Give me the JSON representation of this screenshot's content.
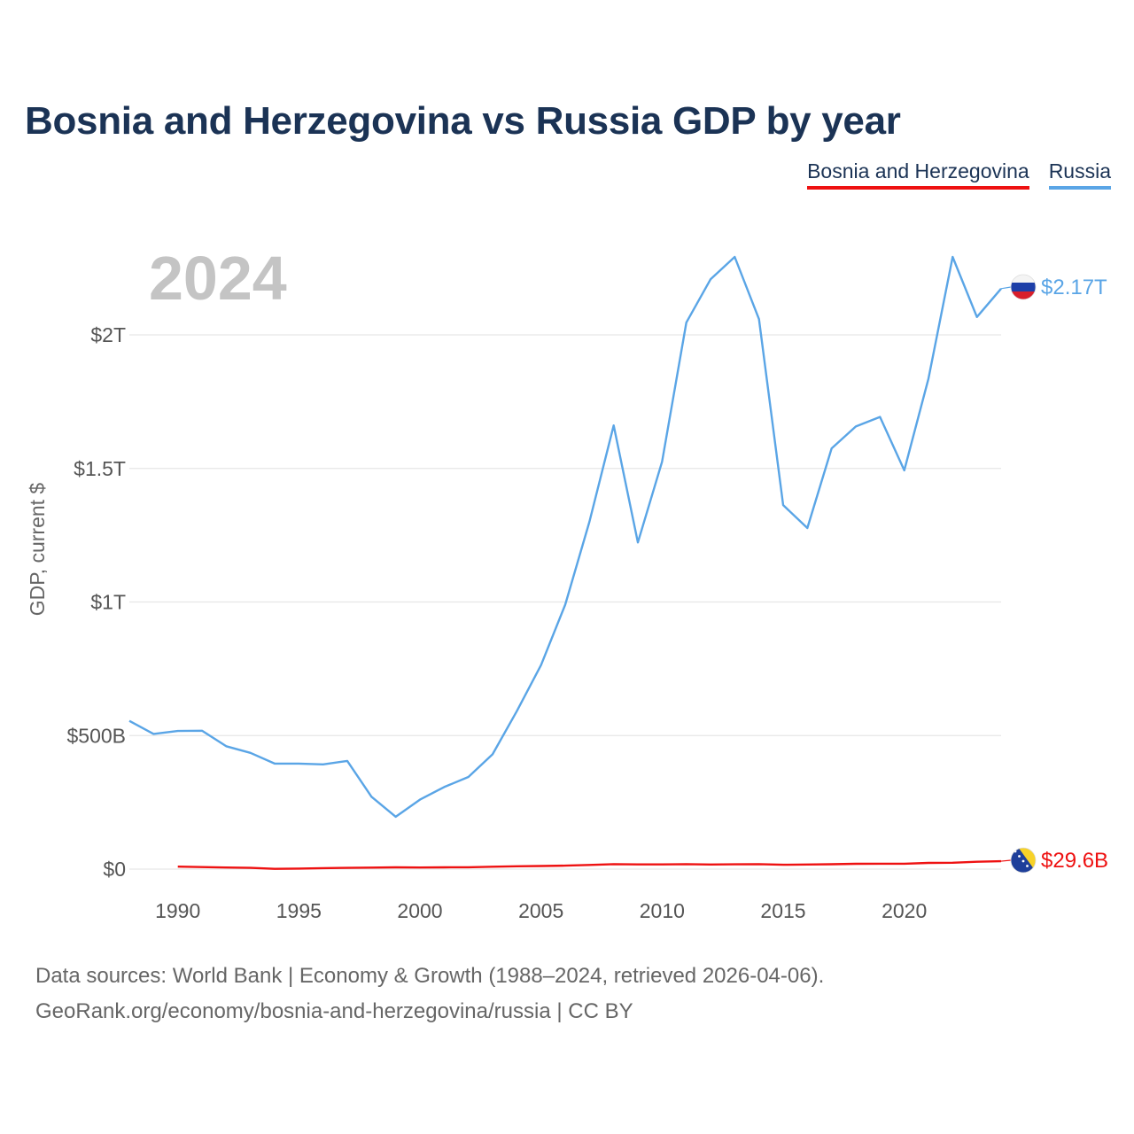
{
  "page": {
    "title": "Bosnia and Herzegovina vs Russia GDP by year",
    "year_overlay": "2024",
    "footer_line1": "Data sources: World Bank | Economy & Growth (1988–2024, retrieved 2026-04-06).",
    "footer_line2": "GeoRank.org/economy/bosnia-and-herzegovina/russia | CC BY"
  },
  "legend": [
    {
      "label": "Bosnia and Herzegovina",
      "color": "#ee1111"
    },
    {
      "label": "Russia",
      "color": "#5aa5e6"
    }
  ],
  "chart_data": {
    "type": "line",
    "title": "Bosnia and Herzegovina vs Russia GDP by year",
    "ylabel": "GDP, current $",
    "xlabel": "",
    "xlim": [
      1988,
      2024
    ],
    "ylim": [
      -0.05,
      2.3
    ],
    "y_unit": "trillions of current US$",
    "x_ticks": [
      1990,
      1995,
      2000,
      2005,
      2010,
      2015,
      2020
    ],
    "y_ticks": [
      {
        "value": 0,
        "label": "$0"
      },
      {
        "value": 0.5,
        "label": "$500B"
      },
      {
        "value": 1,
        "label": "$1T"
      },
      {
        "value": 1.5,
        "label": "$1.5T"
      },
      {
        "value": 2,
        "label": "$2T"
      }
    ],
    "grid": true,
    "legend_position": "top-right",
    "series": [
      {
        "name": "Russia",
        "color": "#5aa5e6",
        "flag": "russia-flag-icon",
        "end_label": "$2.17T",
        "x": [
          1988,
          1989,
          1990,
          1991,
          1992,
          1993,
          1994,
          1995,
          1996,
          1997,
          1998,
          1999,
          2000,
          2001,
          2002,
          2003,
          2004,
          2005,
          2006,
          2007,
          2008,
          2009,
          2010,
          2011,
          2012,
          2013,
          2014,
          2015,
          2016,
          2017,
          2018,
          2019,
          2020,
          2021,
          2022,
          2023,
          2024
        ],
        "values": [
          0.555,
          0.506,
          0.517,
          0.518,
          0.46,
          0.435,
          0.395,
          0.395,
          0.392,
          0.405,
          0.271,
          0.196,
          0.26,
          0.307,
          0.345,
          0.43,
          0.591,
          0.764,
          0.99,
          1.3,
          1.661,
          1.223,
          1.525,
          2.046,
          2.208,
          2.292,
          2.059,
          1.363,
          1.277,
          1.575,
          1.657,
          1.693,
          1.493,
          1.836,
          2.292,
          2.067,
          2.173
        ]
      },
      {
        "name": "Bosnia and Herzegovina",
        "color": "#ee1111",
        "flag": "bosnia-flag-icon",
        "end_label": "$29.6B",
        "x": [
          1990,
          1991,
          1992,
          1993,
          1994,
          1995,
          1996,
          1997,
          1998,
          1999,
          2000,
          2001,
          2002,
          2003,
          2004,
          2005,
          2006,
          2007,
          2008,
          2009,
          2010,
          2011,
          2012,
          2013,
          2014,
          2015,
          2016,
          2017,
          2018,
          2019,
          2020,
          2021,
          2022,
          2023,
          2024
        ],
        "values": [
          0.0093,
          0.0075,
          0.006,
          0.0045,
          0.001,
          0.002,
          0.0035,
          0.0045,
          0.0055,
          0.0065,
          0.006,
          0.0065,
          0.007,
          0.009,
          0.0105,
          0.0115,
          0.013,
          0.0155,
          0.0185,
          0.0175,
          0.0175,
          0.0185,
          0.0172,
          0.018,
          0.0185,
          0.0162,
          0.0171,
          0.0181,
          0.02,
          0.0202,
          0.0202,
          0.0233,
          0.024,
          0.0276,
          0.0296
        ]
      }
    ]
  }
}
